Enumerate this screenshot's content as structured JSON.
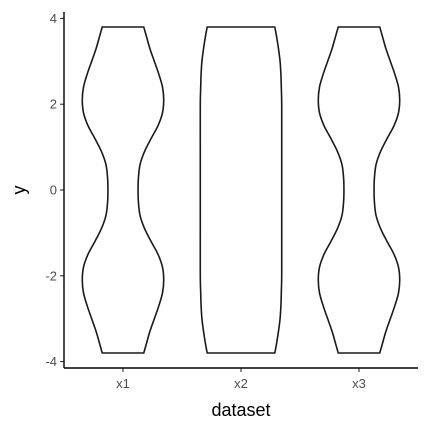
{
  "chart_data": {
    "type": "violin",
    "title": "",
    "xlabel": "dataset",
    "ylabel": "y",
    "categories": [
      "x1",
      "x2",
      "x3"
    ],
    "ylim": [
      -4.15,
      4.15
    ],
    "yticks": [
      -4,
      -2,
      0,
      2,
      4
    ],
    "ytick_labels": [
      "-4",
      "-2",
      "0",
      "2",
      "4"
    ],
    "grid": false,
    "legend": "none",
    "series": [
      {
        "category": "x1",
        "y_min": -3.8,
        "y_max": 3.8,
        "density_profile": [
          [
            -3.8,
            0.51
          ],
          [
            -3.6,
            0.57
          ],
          [
            -3.3,
            0.66
          ],
          [
            -3.0,
            0.77
          ],
          [
            -2.7,
            0.88
          ],
          [
            -2.4,
            0.97
          ],
          [
            -2.1,
            1.0
          ],
          [
            -1.8,
            0.97
          ],
          [
            -1.5,
            0.86
          ],
          [
            -1.2,
            0.69
          ],
          [
            -0.9,
            0.53
          ],
          [
            -0.6,
            0.42
          ],
          [
            -0.3,
            0.38
          ],
          [
            0.0,
            0.37
          ],
          [
            0.3,
            0.38
          ],
          [
            0.6,
            0.42
          ],
          [
            0.9,
            0.53
          ],
          [
            1.2,
            0.69
          ],
          [
            1.5,
            0.86
          ],
          [
            1.8,
            0.97
          ],
          [
            2.1,
            1.0
          ],
          [
            2.4,
            0.97
          ],
          [
            2.7,
            0.88
          ],
          [
            3.0,
            0.77
          ],
          [
            3.3,
            0.66
          ],
          [
            3.6,
            0.57
          ],
          [
            3.8,
            0.51
          ]
        ]
      },
      {
        "category": "x2",
        "y_min": -3.8,
        "y_max": 3.8,
        "density_profile": [
          [
            -3.8,
            0.83
          ],
          [
            -3.6,
            0.87
          ],
          [
            -3.3,
            0.92
          ],
          [
            -3.0,
            0.96
          ],
          [
            -2.7,
            0.98
          ],
          [
            -2.4,
            0.99
          ],
          [
            -2.0,
            1.0
          ],
          [
            -1.0,
            1.0
          ],
          [
            0.0,
            1.0
          ],
          [
            1.0,
            1.0
          ],
          [
            2.0,
            1.0
          ],
          [
            2.4,
            0.99
          ],
          [
            2.7,
            0.98
          ],
          [
            3.0,
            0.96
          ],
          [
            3.3,
            0.92
          ],
          [
            3.6,
            0.87
          ],
          [
            3.8,
            0.83
          ]
        ]
      },
      {
        "category": "x3",
        "y_min": -3.8,
        "y_max": 3.8,
        "density_profile": [
          [
            -3.8,
            0.51
          ],
          [
            -3.6,
            0.57
          ],
          [
            -3.3,
            0.66
          ],
          [
            -3.0,
            0.77
          ],
          [
            -2.7,
            0.88
          ],
          [
            -2.4,
            0.97
          ],
          [
            -2.1,
            1.0
          ],
          [
            -1.8,
            0.97
          ],
          [
            -1.5,
            0.86
          ],
          [
            -1.2,
            0.69
          ],
          [
            -0.9,
            0.53
          ],
          [
            -0.6,
            0.42
          ],
          [
            -0.3,
            0.38
          ],
          [
            0.0,
            0.37
          ],
          [
            0.3,
            0.38
          ],
          [
            0.6,
            0.42
          ],
          [
            0.9,
            0.53
          ],
          [
            1.2,
            0.69
          ],
          [
            1.5,
            0.86
          ],
          [
            1.8,
            0.97
          ],
          [
            2.1,
            1.0
          ],
          [
            2.4,
            0.97
          ],
          [
            2.7,
            0.88
          ],
          [
            3.0,
            0.77
          ],
          [
            3.3,
            0.66
          ],
          [
            3.6,
            0.57
          ],
          [
            3.8,
            0.51
          ]
        ]
      }
    ],
    "colors": {
      "outline": "#1a1a1a",
      "fill": "#ffffff",
      "axis": "#000000",
      "tick_text": "#4d4d4d"
    }
  }
}
